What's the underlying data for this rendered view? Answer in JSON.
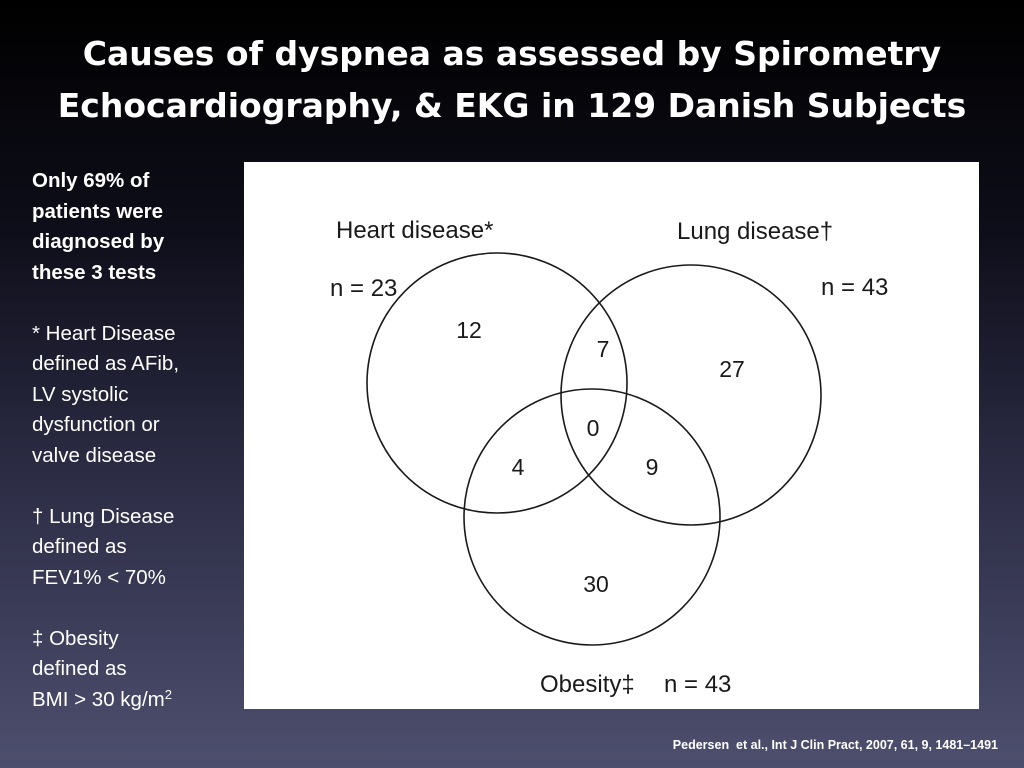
{
  "title": {
    "line1": "Causes of dyspnea as assessed by Spirometry",
    "line2": "Echocardiography, & EKG in 129 Danish Subjects"
  },
  "notes": {
    "summary": [
      "Only 69% of",
      "patients were",
      "diagnosed by",
      "these 3 tests"
    ],
    "heart_def": [
      "* Heart Disease",
      "defined as AFib,",
      "LV systolic",
      "dysfunction or",
      "valve disease"
    ],
    "lung_def": [
      "† Lung Disease",
      "defined as",
      "FEV1% < 70%"
    ],
    "obesity_def": [
      "‡  Obesity",
      "defined as",
      "BMI > 30 kg/m"
    ],
    "obesity_superscript": "2"
  },
  "venn": {
    "sets": {
      "heart": {
        "label": "Heart disease*",
        "n": "n = 23"
      },
      "lung": {
        "label": "Lung disease†",
        "n": "n = 43"
      },
      "obesity": {
        "label": "Obesity‡",
        "n": "n = 43"
      }
    },
    "regions": {
      "heart_only": "12",
      "heart_lung": "7",
      "lung_only": "27",
      "all_three": "0",
      "heart_obesity": "4",
      "lung_obesity": "9",
      "obesity_only": "30"
    }
  },
  "citation": "Pedersen  et al., Int J Clin Pract, 2007, 61, 9, 1481–1491"
}
